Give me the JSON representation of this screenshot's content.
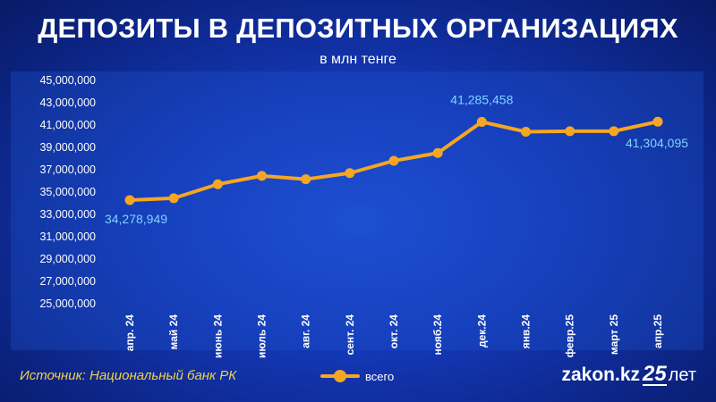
{
  "header": {
    "title": "ДЕПОЗИТЫ В ДЕПОЗИТНЫХ ОРГАНИЗАЦИЯХ",
    "subtitle": "в млн тенге"
  },
  "footer": {
    "source": "Источник: Национальный банк РК",
    "legend_label": "всего",
    "brand_name": "zakon.kz",
    "brand_badge": "25",
    "brand_suffix": "лет"
  },
  "colors": {
    "line": "#f5a623",
    "label": "#7fd3ff",
    "axis_text": "#ffffff"
  },
  "chart_data": {
    "type": "line",
    "title": "ДЕПОЗИТЫ В ДЕПОЗИТНЫХ ОРГАНИЗАЦИЯХ",
    "subtitle": "в млн тенге",
    "categories": [
      "апр. 24",
      "май 24",
      "июнь 24",
      "июль 24",
      "авг. 24",
      "сент. 24",
      "окт. 24",
      "нояб.24",
      "дек.24",
      "янв.24",
      "февр.25",
      "март 25",
      "апр.25"
    ],
    "series": [
      {
        "name": "всего",
        "values": [
          34278949,
          34450000,
          35700000,
          36450000,
          36150000,
          36700000,
          37800000,
          38500000,
          41285458,
          40400000,
          40450000,
          40450000,
          41304095
        ]
      }
    ],
    "data_labels": [
      {
        "index": 0,
        "text": "34,278,949"
      },
      {
        "index": 8,
        "text": "41,285,458"
      },
      {
        "index": 12,
        "text": "41,304,095"
      }
    ],
    "yticks": [
      "25,000,000",
      "27,000,000",
      "29,000,000",
      "31,000,000",
      "33,000,000",
      "35,000,000",
      "37,000,000",
      "39,000,000",
      "41,000,000",
      "43,000,000",
      "45,000,000"
    ],
    "ylim": [
      25000000,
      45000000
    ],
    "grid": false,
    "legend": "bottom-center"
  }
}
